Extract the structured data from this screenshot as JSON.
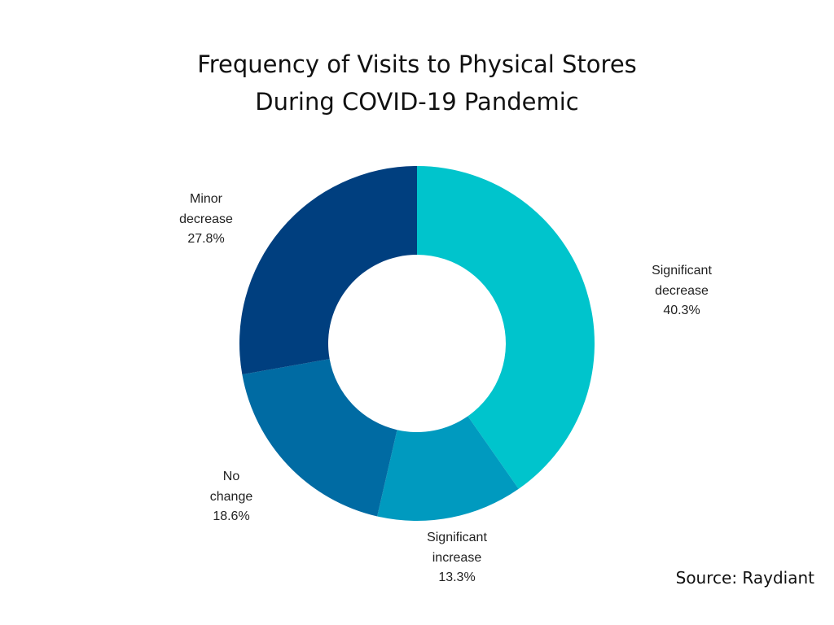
{
  "chart_data": {
    "type": "pie",
    "variant": "donut",
    "title_lines": [
      "Frequency of Visits to Physical Stores",
      "During COVID-19 Pandemic"
    ],
    "slices": [
      {
        "label_lines": [
          "Significant",
          "decrease"
        ],
        "value": 40.3,
        "value_text": "40.3%",
        "color": "#00C4CC"
      },
      {
        "label_lines": [
          "Significant",
          "increase"
        ],
        "value": 13.3,
        "value_text": "13.3%",
        "color": "#009ABF"
      },
      {
        "label_lines": [
          "No",
          "change"
        ],
        "value": 18.6,
        "value_text": "18.6%",
        "color": "#006BA3"
      },
      {
        "label_lines": [
          "Minor",
          "decrease"
        ],
        "value": 27.8,
        "value_text": "27.8%",
        "color": "#003F7F"
      }
    ],
    "start_angle": "12 o'clock",
    "direction": "clockwise",
    "legend": "none"
  },
  "source_text": "Source: Raydiant"
}
